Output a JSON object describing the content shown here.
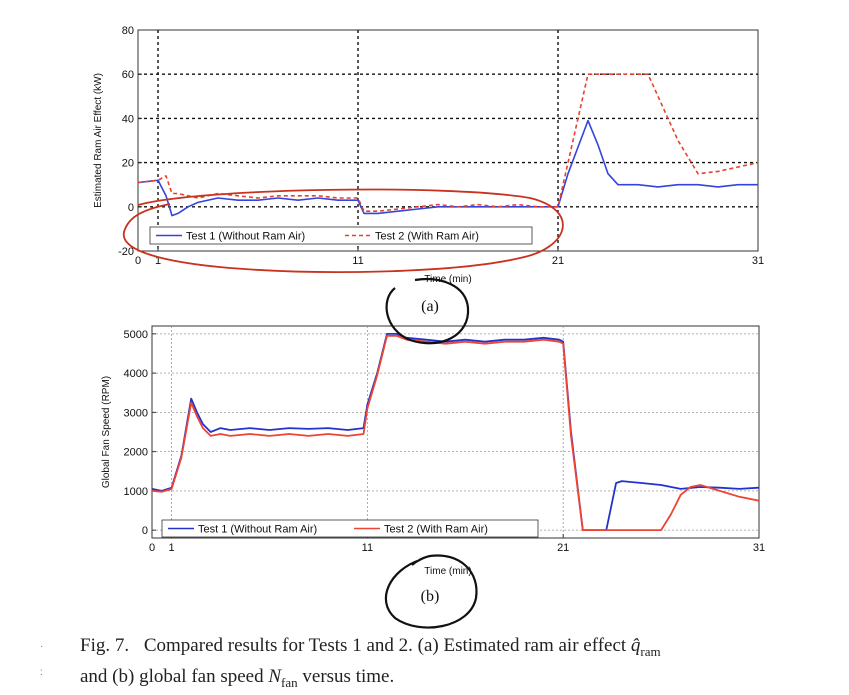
{
  "chart_data": [
    {
      "type": "line",
      "panel_label": "(a)",
      "xlabel": "Time (min)",
      "ylabel": "Estimated Ram Air Effect (kW)",
      "xlim": [
        0,
        31
      ],
      "ylim": [
        -20,
        80
      ],
      "xticks": [
        0,
        1,
        11,
        21,
        31
      ],
      "yticks": [
        -20,
        0,
        20,
        40,
        60,
        80
      ],
      "grid": true,
      "legend_position": "bottom-left",
      "colors": {
        "test1": "#3344dd",
        "test2": "#e8402a"
      },
      "series": [
        {
          "name": "Test 1 (Without Ram Air)",
          "style": "solid",
          "x": [
            0,
            1,
            1.4,
            1.7,
            2.0,
            2.5,
            3,
            4,
            5,
            6,
            7,
            8,
            9,
            10,
            11,
            11.3,
            11.6,
            12,
            13,
            14,
            15,
            16,
            17,
            18,
            19,
            20,
            21,
            21.5,
            22,
            22.5,
            23,
            23.5,
            24,
            25,
            26,
            27,
            28,
            29,
            30,
            31
          ],
          "y": [
            11,
            12,
            5,
            -4,
            -3,
            0,
            2,
            4,
            3,
            3,
            4,
            3,
            4,
            3,
            3,
            -3,
            -3,
            -3,
            -2,
            -1,
            0,
            0,
            0,
            0,
            0,
            0,
            0,
            15,
            27,
            39,
            28,
            15,
            10,
            10,
            9,
            10,
            10,
            9,
            10,
            10
          ]
        },
        {
          "name": "Test 2 (With Ram Air)",
          "style": "dashed",
          "x": [
            0,
            1,
            1.4,
            1.7,
            2.0,
            2.5,
            3,
            4,
            5,
            6,
            7,
            8,
            9,
            10,
            11,
            11.3,
            12,
            13,
            14,
            15,
            16,
            17,
            18,
            19,
            20,
            21,
            21.5,
            22,
            22.5,
            23,
            24,
            25,
            25.5,
            26,
            27,
            28,
            29,
            30,
            31
          ],
          "y": [
            11,
            12,
            14,
            6,
            6,
            5,
            4,
            6,
            5,
            4,
            5,
            5,
            5,
            4,
            4,
            -2,
            -2,
            -1,
            0,
            1,
            0,
            1,
            0,
            1,
            0,
            0,
            20,
            40,
            60,
            60,
            60,
            60,
            60,
            50,
            30,
            15,
            16,
            18,
            20
          ]
        }
      ]
    },
    {
      "type": "line",
      "panel_label": "(b)",
      "xlabel": "Time (min)",
      "ylabel": "Global Fan Speed (RPM)",
      "xlim": [
        0,
        31
      ],
      "ylim": [
        -200,
        5200
      ],
      "xticks": [
        0,
        1,
        11,
        21,
        31
      ],
      "yticks": [
        0,
        1000,
        2000,
        3000,
        4000,
        5000
      ],
      "grid": true,
      "legend_position": "bottom-left",
      "colors": {
        "test1": "#2233cc",
        "test2": "#ee4433"
      },
      "series": [
        {
          "name": "Test 1 (Without Ram Air)",
          "style": "solid",
          "x": [
            0,
            0.5,
            1,
            1.5,
            2,
            2.3,
            2.6,
            3,
            3.5,
            4,
            5,
            6,
            7,
            8,
            9,
            10,
            10.8,
            11,
            11.5,
            12,
            12.5,
            13,
            14,
            15,
            16,
            17,
            18,
            19,
            20,
            20.8,
            21,
            21.4,
            22,
            22.5,
            23.2,
            23.7,
            24,
            25,
            26,
            27,
            28,
            29,
            30,
            31
          ],
          "y": [
            1050,
            1000,
            1080,
            1900,
            3350,
            3000,
            2700,
            2500,
            2600,
            2550,
            2600,
            2550,
            2600,
            2580,
            2600,
            2550,
            2600,
            3200,
            4000,
            5000,
            5000,
            4900,
            4850,
            4800,
            4850,
            4800,
            4850,
            4850,
            4900,
            4850,
            4800,
            2500,
            0,
            0,
            0,
            1200,
            1250,
            1200,
            1150,
            1050,
            1100,
            1080,
            1050,
            1080
          ]
        },
        {
          "name": "Test 2 (With Ram Air)",
          "style": "solid",
          "x": [
            0,
            0.5,
            1,
            1.5,
            2,
            2.3,
            2.6,
            3,
            3.5,
            4,
            5,
            6,
            7,
            8,
            9,
            10,
            10.8,
            11,
            11.5,
            12,
            12.5,
            13,
            14,
            15,
            16,
            17,
            18,
            19,
            20,
            20.8,
            21,
            21.4,
            22,
            22.5,
            23,
            24,
            25,
            26,
            26.5,
            27,
            27.5,
            28,
            29,
            30,
            31
          ],
          "y": [
            1000,
            980,
            1050,
            1850,
            3250,
            2900,
            2600,
            2400,
            2450,
            2400,
            2450,
            2400,
            2450,
            2400,
            2450,
            2400,
            2450,
            3100,
            3950,
            4950,
            4950,
            4850,
            4800,
            4750,
            4800,
            4750,
            4800,
            4800,
            4850,
            4800,
            4750,
            2400,
            0,
            0,
            0,
            0,
            0,
            0,
            400,
            900,
            1100,
            1150,
            1000,
            850,
            750
          ]
        }
      ]
    }
  ],
  "caption": {
    "label": "Fig. 7.",
    "text_before_q": "Compared results for Tests 1 and 2. (a) Estimated ram air effect",
    "q_symbol": "q̂",
    "q_sub": "ram",
    "text_middle": "and (b) global fan speed",
    "n_symbol": "N",
    "n_sub": "fan",
    "text_after_n": "versus time."
  },
  "bullets": [
    "·",
    ":"
  ],
  "annotation_colors": {
    "red_ink": "#c8321e",
    "black_ink": "#111111"
  }
}
